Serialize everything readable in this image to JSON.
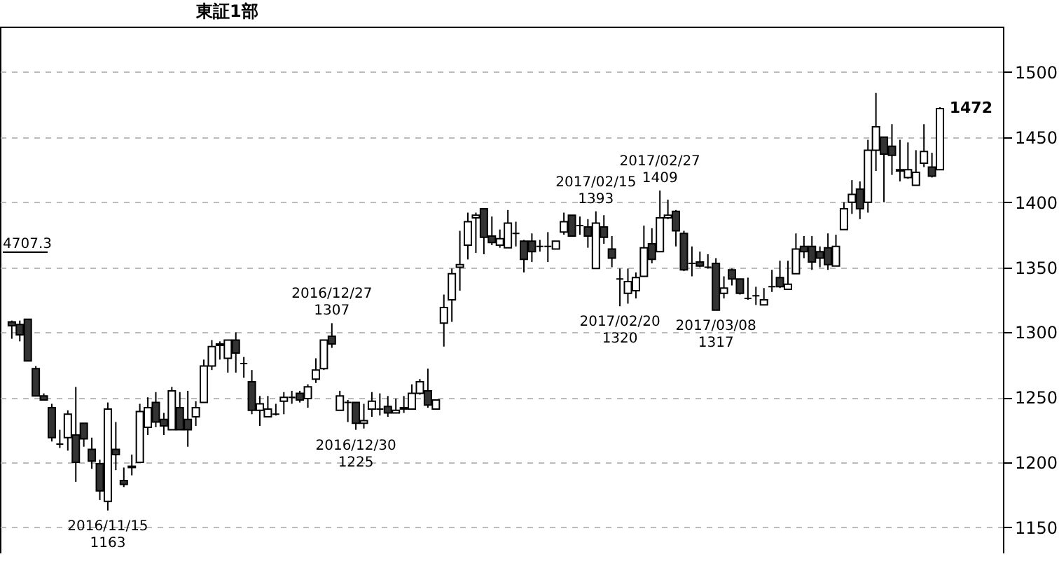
{
  "chart_data": {
    "type": "candlestick",
    "title": "東証1部",
    "categories": [
      null,
      null,
      null,
      null,
      null,
      null,
      null,
      null,
      null,
      null,
      null,
      null,
      null,
      null,
      null,
      null,
      null,
      null,
      null,
      null,
      null,
      null,
      null,
      null,
      null,
      null,
      null,
      null,
      null,
      null,
      null,
      null,
      null,
      null,
      null,
      null,
      null,
      null,
      null,
      null,
      null,
      null,
      null,
      null,
      null,
      null,
      null,
      null,
      null,
      null,
      null,
      null,
      null,
      null,
      null,
      null,
      null,
      null,
      null,
      null,
      null,
      null,
      null,
      null,
      null,
      null,
      null,
      null,
      null,
      null,
      null,
      null,
      null,
      null,
      null,
      null,
      null,
      null,
      null,
      null,
      null,
      null,
      null,
      null,
      null,
      null,
      null,
      null,
      null,
      null,
      null,
      null,
      null,
      null,
      null,
      null,
      null,
      null,
      null,
      null,
      null,
      null,
      null,
      null,
      null,
      null,
      null,
      null,
      null,
      null,
      null,
      null,
      null,
      null,
      null,
      null,
      null
    ],
    "ohlc": [
      [
        1308,
        1309,
        1295,
        1305
      ],
      [
        1306,
        1309,
        1293,
        1298
      ],
      [
        1310,
        1310,
        1278,
        1278
      ],
      [
        1272,
        1274,
        1251,
        1251
      ],
      [
        1251,
        1253,
        1248,
        1248
      ],
      [
        1242,
        1245,
        1216,
        1219
      ],
      [
        1214,
        1225,
        1211,
        1214
      ],
      [
        1219,
        1240,
        1209,
        1237
      ],
      [
        1221,
        1258,
        1185,
        1200
      ],
      [
        1230,
        1230,
        1212,
        1218
      ],
      [
        1210,
        1219,
        1195,
        1201
      ],
      [
        1199,
        1202,
        1171,
        1178
      ],
      [
        1170,
        1246,
        1163,
        1241
      ],
      [
        1210,
        1231,
        1194,
        1206
      ],
      [
        1186,
        1196,
        1181,
        1183
      ],
      [
        1196,
        1206,
        1190,
        1197
      ],
      [
        1200,
        1245,
        1200,
        1239
      ],
      [
        1227,
        1250,
        1221,
        1242
      ],
      [
        1246,
        1254,
        1227,
        1231
      ],
      [
        1233,
        1238,
        1221,
        1228
      ],
      [
        1225,
        1258,
        1225,
        1255
      ],
      [
        1242,
        1254,
        1225,
        1225
      ],
      [
        1233,
        1255,
        1212,
        1225
      ],
      [
        1235,
        1247,
        1228,
        1242
      ],
      [
        1246,
        1279,
        1246,
        1274
      ],
      [
        1274,
        1294,
        1271,
        1289
      ],
      [
        1290,
        1293,
        1279,
        1291
      ],
      [
        1280,
        1294,
        1269,
        1294
      ],
      [
        1294,
        1300,
        1269,
        1284
      ],
      [
        1276,
        1281,
        1265,
        1276
      ],
      [
        1262,
        1271,
        1237,
        1240
      ],
      [
        1240,
        1251,
        1228,
        1245
      ],
      [
        1235,
        1251,
        1235,
        1241
      ],
      [
        1237,
        1245,
        1236,
        1237
      ],
      [
        1247,
        1254,
        1237,
        1250
      ],
      [
        1250,
        1255,
        1245,
        1250
      ],
      [
        1253,
        1255,
        1246,
        1248
      ],
      [
        1249,
        1260,
        1242,
        1258
      ],
      [
        1264,
        1280,
        1261,
        1271
      ],
      [
        1272,
        1294,
        1271,
        1294
      ],
      [
        1297,
        1307,
        1288,
        1291
      ],
      [
        1240,
        1255,
        1240,
        1251
      ],
      [
        1246,
        1248,
        1231,
        1246
      ],
      [
        1246,
        1246,
        1225,
        1230
      ],
      [
        1230,
        1245,
        1226,
        1232
      ],
      [
        1241,
        1254,
        1235,
        1247
      ],
      [
        1241,
        1253,
        1236,
        1241
      ],
      [
        1243,
        1251,
        1235,
        1238
      ],
      [
        1238,
        1249,
        1238,
        1240
      ],
      [
        1241,
        1251,
        1238,
        1242
      ],
      [
        1241,
        1260,
        1241,
        1253
      ],
      [
        1253,
        1264,
        1252,
        1262
      ],
      [
        1255,
        1272,
        1242,
        1244
      ],
      [
        1241,
        1248,
        1241,
        1248
      ],
      [
        1307,
        1329,
        1289,
        1319
      ],
      [
        1325,
        1349,
        1308,
        1345
      ],
      [
        1350,
        1378,
        1332,
        1352
      ],
      [
        1367,
        1392,
        1356,
        1385
      ],
      [
        1388,
        1392,
        1361,
        1390
      ],
      [
        1395,
        1395,
        1360,
        1373
      ],
      [
        1374,
        1389,
        1367,
        1369
      ],
      [
        1367,
        1379,
        1365,
        1372
      ],
      [
        1365,
        1394,
        1365,
        1384
      ],
      [
        1376,
        1385,
        1366,
        1376
      ],
      [
        1370,
        1371,
        1346,
        1356
      ],
      [
        1370,
        1376,
        1354,
        1362
      ],
      [
        1366,
        1371,
        1362,
        1366
      ],
      [
        1366,
        1377,
        1354,
        1366
      ],
      [
        1364,
        1370,
        1364,
        1370
      ],
      [
        1377,
        1392,
        1375,
        1385
      ],
      [
        1390,
        1390,
        1374,
        1374
      ],
      [
        1382,
        1389,
        1375,
        1382
      ],
      [
        1381,
        1387,
        1365,
        1374
      ],
      [
        1349,
        1393,
        1349,
        1384
      ],
      [
        1381,
        1390,
        1368,
        1373
      ],
      [
        1364,
        1374,
        1350,
        1357
      ],
      [
        1341,
        1349,
        1320,
        1341
      ],
      [
        1330,
        1349,
        1322,
        1339
      ],
      [
        1332,
        1346,
        1326,
        1342
      ],
      [
        1343,
        1382,
        1343,
        1365
      ],
      [
        1368,
        1380,
        1353,
        1356
      ],
      [
        1362,
        1409,
        1362,
        1388
      ],
      [
        1388,
        1402,
        1387,
        1390
      ],
      [
        1393,
        1394,
        1366,
        1378
      ],
      [
        1376,
        1378,
        1347,
        1348
      ],
      [
        1353,
        1366,
        1343,
        1353
      ],
      [
        1354,
        1362,
        1350,
        1351
      ],
      [
        1350,
        1360,
        1349,
        1350
      ],
      [
        1353,
        1357,
        1317,
        1317
      ],
      [
        1330,
        1343,
        1326,
        1334
      ],
      [
        1348,
        1349,
        1336,
        1341
      ],
      [
        1341,
        1341,
        1329,
        1330
      ],
      [
        1326,
        1342,
        1325,
        1326
      ],
      [
        1328,
        1335,
        1321,
        1328
      ],
      [
        1321,
        1334,
        1321,
        1325
      ],
      [
        1335,
        1348,
        1331,
        1335
      ],
      [
        1342,
        1355,
        1334,
        1335
      ],
      [
        1333,
        1355,
        1333,
        1337
      ],
      [
        1345,
        1376,
        1345,
        1364
      ],
      [
        1366,
        1374,
        1357,
        1362
      ],
      [
        1366,
        1374,
        1348,
        1354
      ],
      [
        1362,
        1366,
        1350,
        1357
      ],
      [
        1365,
        1376,
        1348,
        1352
      ],
      [
        1351,
        1375,
        1351,
        1366
      ],
      [
        1379,
        1400,
        1379,
        1395
      ],
      [
        1400,
        1417,
        1391,
        1406
      ],
      [
        1410,
        1416,
        1387,
        1395
      ],
      [
        1400,
        1448,
        1392,
        1440
      ],
      [
        1440,
        1484,
        1424,
        1458
      ],
      [
        1450,
        1450,
        1400,
        1437
      ],
      [
        1443,
        1460,
        1421,
        1436
      ],
      [
        1425,
        1448,
        1416,
        1424
      ],
      [
        1419,
        1446,
        1418,
        1425
      ],
      [
        1413,
        1440,
        1413,
        1423
      ],
      [
        1430,
        1460,
        1427,
        1439
      ],
      [
        1427,
        1438,
        1419,
        1420
      ],
      [
        1425,
        1473,
        1425,
        1472
      ]
    ],
    "ylim": [
      1130,
      1535
    ],
    "yticks": [
      1150,
      1200,
      1250,
      1300,
      1350,
      1400,
      1450,
      1500
    ],
    "grid": "y",
    "annotations": [
      {
        "text": "2016/11/15\n1163",
        "y": 1163
      },
      {
        "text": "2016/12/27\n1307",
        "y": 1307
      },
      {
        "text": "2016/12/30\n1225",
        "y": 1225
      },
      {
        "text": "2017/02/15\n1393",
        "y": 1393
      },
      {
        "text": "2017/02/20\n1320",
        "y": 1320
      },
      {
        "text": "2017/02/27\n1409",
        "y": 1409
      },
      {
        "text": "2017/03/08\n1317",
        "y": 1317
      },
      "1472",
      "4707.3"
    ]
  }
}
